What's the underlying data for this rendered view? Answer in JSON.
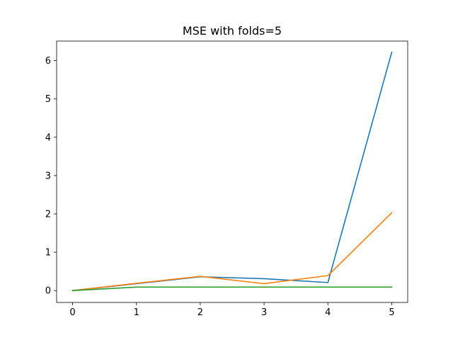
{
  "chart_data": {
    "type": "line",
    "title": "MSE with folds=5",
    "xlabel": "",
    "ylabel": "",
    "x": [
      0,
      1,
      2,
      3,
      4,
      5
    ],
    "xlim": [
      -0.25,
      5.25
    ],
    "ylim": [
      -0.31,
      6.51
    ],
    "xticks": [
      0,
      1,
      2,
      3,
      4,
      5
    ],
    "yticks": [
      0,
      1,
      2,
      3,
      4,
      5,
      6
    ],
    "grid": false,
    "series": [
      {
        "values": [
          0.0,
          0.18,
          0.36,
          0.31,
          0.21,
          6.22
        ],
        "color": "#1f77b4"
      },
      {
        "values": [
          0.0,
          0.19,
          0.37,
          0.18,
          0.39,
          2.03
        ],
        "color": "#ff7f0e"
      },
      {
        "values": [
          0.0,
          0.09,
          0.09,
          0.09,
          0.09,
          0.09
        ],
        "color": "#2ca02c"
      }
    ]
  }
}
